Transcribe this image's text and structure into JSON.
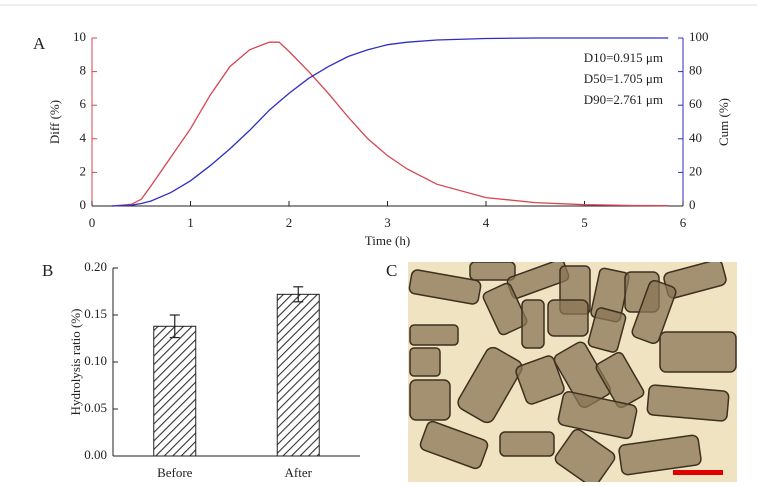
{
  "chart_data": [
    {
      "type": "line",
      "label": "A",
      "xlabel": "Time (h)",
      "ylabel": "Diff (%)",
      "y2label": "Cum (%)",
      "x": [
        0.2,
        0.4,
        0.5,
        0.6,
        0.8,
        1.0,
        1.2,
        1.4,
        1.6,
        1.8,
        1.9,
        2.0,
        2.2,
        2.4,
        2.6,
        2.8,
        3.0,
        3.2,
        3.5,
        4.0,
        4.5,
        5.0,
        5.5,
        5.85
      ],
      "series": [
        {
          "name": "Diff",
          "color": "#d64550",
          "values": [
            0,
            0.1,
            0.4,
            1.2,
            2.9,
            4.6,
            6.6,
            8.3,
            9.3,
            9.75,
            9.75,
            9.2,
            8.0,
            6.7,
            5.3,
            4.0,
            3.0,
            2.2,
            1.3,
            0.5,
            0.2,
            0.08,
            0.03,
            0.02
          ]
        },
        {
          "name": "Cum",
          "color": "#2e2ec4",
          "axis": "y2",
          "values": [
            0,
            0.5,
            1.5,
            3,
            8,
            15,
            24,
            34,
            45,
            57,
            62,
            67,
            76,
            83,
            89,
            93,
            96,
            97.5,
            98.8,
            99.7,
            100,
            100,
            100,
            100
          ]
        }
      ],
      "xlim": [
        0,
        6
      ],
      "xticks": [
        0,
        1,
        2,
        3,
        4,
        5,
        6
      ],
      "ylim": [
        0,
        10
      ],
      "yticks": [
        0,
        2,
        4,
        6,
        8,
        10
      ],
      "y2lim": [
        0,
        100
      ],
      "y2ticks": [
        0,
        20,
        40,
        60,
        80,
        100
      ],
      "annotations": [
        "D10=0.915 μm",
        "D50=1.705 μm",
        "D90=2.761 μm"
      ]
    },
    {
      "type": "bar",
      "label": "B",
      "ylabel": "Hydrolysis ratio (%)",
      "categories": [
        "Before",
        "After"
      ],
      "values": [
        0.138,
        0.172
      ],
      "errors": [
        0.012,
        0.008
      ],
      "ylim": [
        0,
        0.2
      ],
      "yticks": [
        {
          "value": 0,
          "label": "0.00"
        },
        {
          "value": 0.05,
          "label": "0.05"
        },
        {
          "value": 0.1,
          "label": "0.10"
        },
        {
          "value": 0.15,
          "label": "0.15"
        },
        {
          "value": 0.2,
          "label": "0.20"
        }
      ]
    }
  ],
  "image_panel": {
    "label": "C"
  }
}
